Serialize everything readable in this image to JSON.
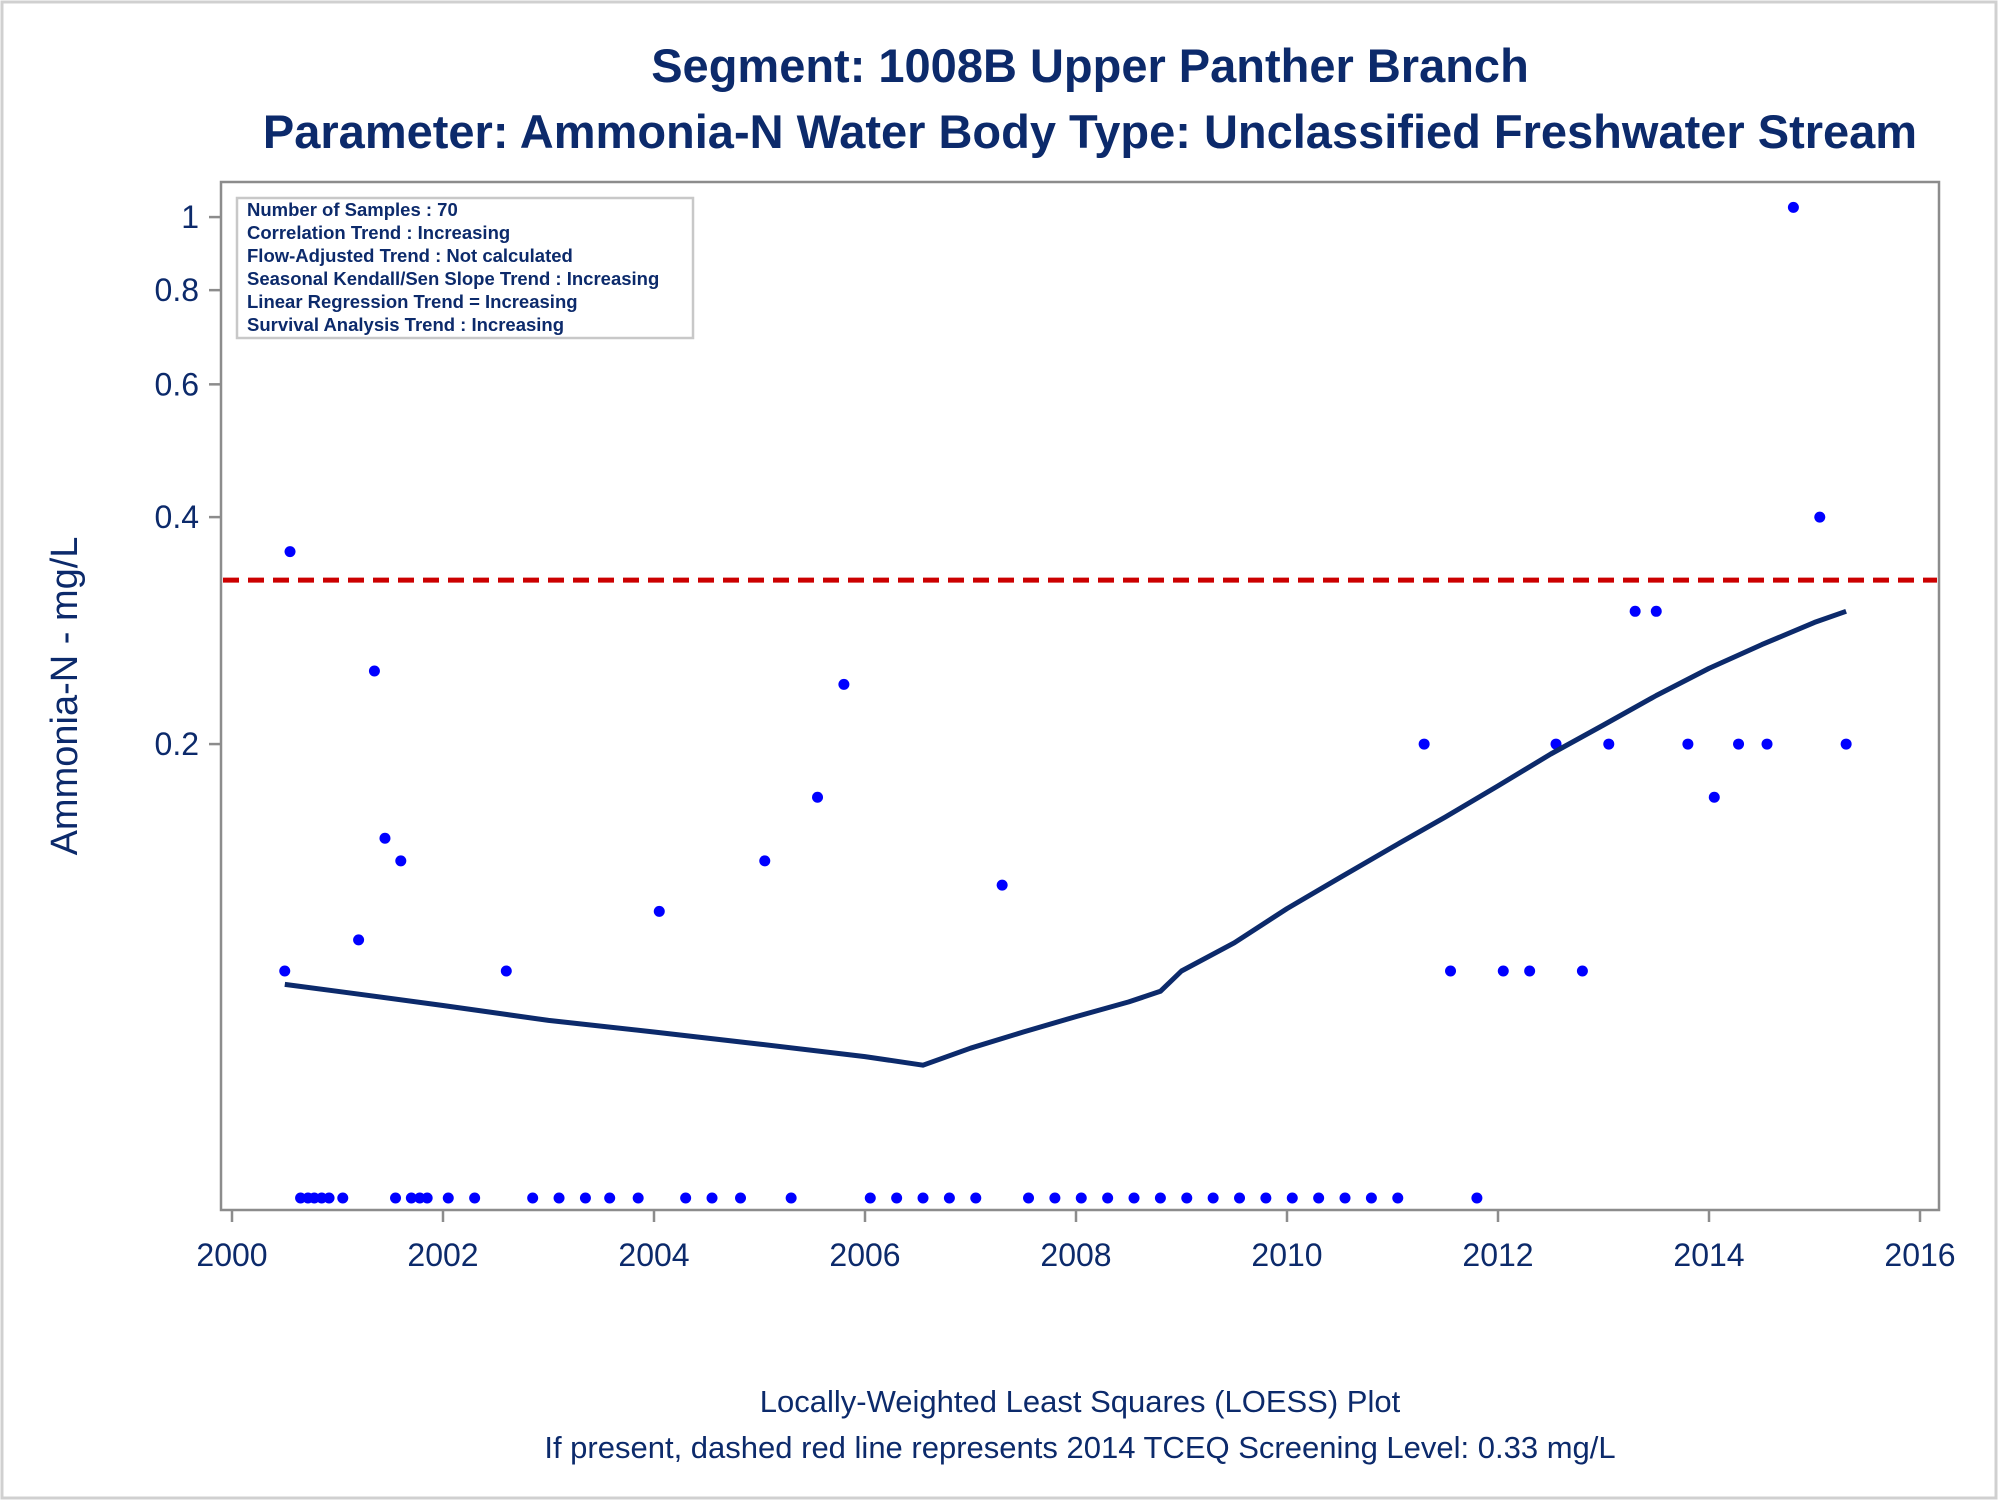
{
  "chart_data": {
    "type": "scatter",
    "title": "Segment: 1008B  Upper Panther Branch",
    "subtitle": "Parameter: Ammonia-N   Water Body Type: Unclassified Freshwater Stream",
    "ylabel": "Ammonia-N - mg/L",
    "xlabel": "",
    "y_scale": "log",
    "ylim": [
      0.05,
      1.06
    ],
    "xlim": [
      2000,
      2016.2
    ],
    "x_ticks": [
      "2000",
      "2002",
      "2004",
      "2006",
      "2008",
      "2010",
      "2012",
      "2014",
      "2016"
    ],
    "y_ticks": [
      {
        "value": 1,
        "label": "1"
      },
      {
        "value": 0.8,
        "label": "0.8"
      },
      {
        "value": 0.6,
        "label": "0.6"
      },
      {
        "value": 0.4,
        "label": "0.4"
      },
      {
        "value": 0.2,
        "label": "0.2"
      }
    ],
    "stats_box": [
      "Number of Samples : 70",
      "Correlation Trend : Increasing",
      "Flow-Adjusted Trend : Not calculated",
      "Seasonal Kendall/Sen Slope Trend : Increasing",
      "Linear Regression Trend = Increasing",
      "Survival Analysis Trend : Increasing"
    ],
    "screening_level": {
      "value": 0.33,
      "color": "#cc0000"
    },
    "footnotes": [
      "Locally-Weighted Least Squares (LOESS) Plot",
      "If present, dashed red line represents 2014 TCEQ Screening Level: 0.33 mg/L"
    ],
    "points_color": "#0000ff",
    "loess_color": "#0c2a6b",
    "series": [
      {
        "type": "scatter",
        "points": [
          [
            2000.5,
            0.1
          ],
          [
            2000.55,
            0.36
          ],
          [
            2000.65,
            0.05
          ],
          [
            2000.72,
            0.05
          ],
          [
            2000.78,
            0.05
          ],
          [
            2000.85,
            0.05
          ],
          [
            2000.92,
            0.05
          ],
          [
            2001.05,
            0.05
          ],
          [
            2001.2,
            0.11
          ],
          [
            2001.35,
            0.25
          ],
          [
            2001.45,
            0.15
          ],
          [
            2001.55,
            0.05
          ],
          [
            2001.6,
            0.14
          ],
          [
            2001.7,
            0.05
          ],
          [
            2001.78,
            0.05
          ],
          [
            2001.85,
            0.05
          ],
          [
            2002.05,
            0.05
          ],
          [
            2002.3,
            0.05
          ],
          [
            2002.6,
            0.1
          ],
          [
            2002.85,
            0.05
          ],
          [
            2003.1,
            0.05
          ],
          [
            2003.35,
            0.05
          ],
          [
            2003.58,
            0.05
          ],
          [
            2003.85,
            0.05
          ],
          [
            2004.05,
            0.12
          ],
          [
            2004.3,
            0.05
          ],
          [
            2004.55,
            0.05
          ],
          [
            2004.82,
            0.05
          ],
          [
            2005.05,
            0.14
          ],
          [
            2005.3,
            0.05
          ],
          [
            2005.55,
            0.17
          ],
          [
            2005.8,
            0.24
          ],
          [
            2006.05,
            0.05
          ],
          [
            2006.3,
            0.05
          ],
          [
            2006.55,
            0.05
          ],
          [
            2006.8,
            0.05
          ],
          [
            2007.05,
            0.05
          ],
          [
            2007.3,
            0.13
          ],
          [
            2007.55,
            0.05
          ],
          [
            2007.8,
            0.05
          ],
          [
            2008.05,
            0.05
          ],
          [
            2008.3,
            0.05
          ],
          [
            2008.55,
            0.05
          ],
          [
            2008.8,
            0.05
          ],
          [
            2009.05,
            0.05
          ],
          [
            2009.3,
            0.05
          ],
          [
            2009.55,
            0.05
          ],
          [
            2009.8,
            0.05
          ],
          [
            2010.05,
            0.05
          ],
          [
            2010.3,
            0.05
          ],
          [
            2010.55,
            0.05
          ],
          [
            2010.8,
            0.05
          ],
          [
            2011.05,
            0.05
          ],
          [
            2011.3,
            0.2
          ],
          [
            2011.55,
            0.1
          ],
          [
            2011.8,
            0.05
          ],
          [
            2012.05,
            0.1
          ],
          [
            2012.3,
            0.1
          ],
          [
            2012.55,
            0.2
          ],
          [
            2012.8,
            0.1
          ],
          [
            2013.05,
            0.2
          ],
          [
            2013.3,
            0.3
          ],
          [
            2013.5,
            0.3
          ],
          [
            2013.8,
            0.2
          ],
          [
            2014.05,
            0.17
          ],
          [
            2014.28,
            0.2
          ],
          [
            2014.55,
            0.2
          ],
          [
            2014.8,
            1.03
          ],
          [
            2015.05,
            0.4
          ],
          [
            2015.3,
            0.2
          ]
        ]
      },
      {
        "type": "line",
        "points": [
          [
            2000.5,
            0.096
          ],
          [
            2001.0,
            0.094
          ],
          [
            2002.0,
            0.09
          ],
          [
            2003.0,
            0.086
          ],
          [
            2004.0,
            0.083
          ],
          [
            2005.0,
            0.08
          ],
          [
            2006.0,
            0.077
          ],
          [
            2006.55,
            0.075
          ],
          [
            2007.0,
            0.079
          ],
          [
            2007.5,
            0.083
          ],
          [
            2008.0,
            0.087
          ],
          [
            2008.5,
            0.091
          ],
          [
            2008.8,
            0.094
          ],
          [
            2009.0,
            0.1
          ],
          [
            2009.5,
            0.109
          ],
          [
            2010.0,
            0.121
          ],
          [
            2010.5,
            0.133
          ],
          [
            2011.0,
            0.146
          ],
          [
            2011.5,
            0.16
          ],
          [
            2012.0,
            0.176
          ],
          [
            2012.5,
            0.194
          ],
          [
            2013.0,
            0.212
          ],
          [
            2013.5,
            0.232
          ],
          [
            2014.0,
            0.252
          ],
          [
            2014.5,
            0.271
          ],
          [
            2015.0,
            0.29
          ],
          [
            2015.3,
            0.3
          ]
        ]
      }
    ]
  }
}
